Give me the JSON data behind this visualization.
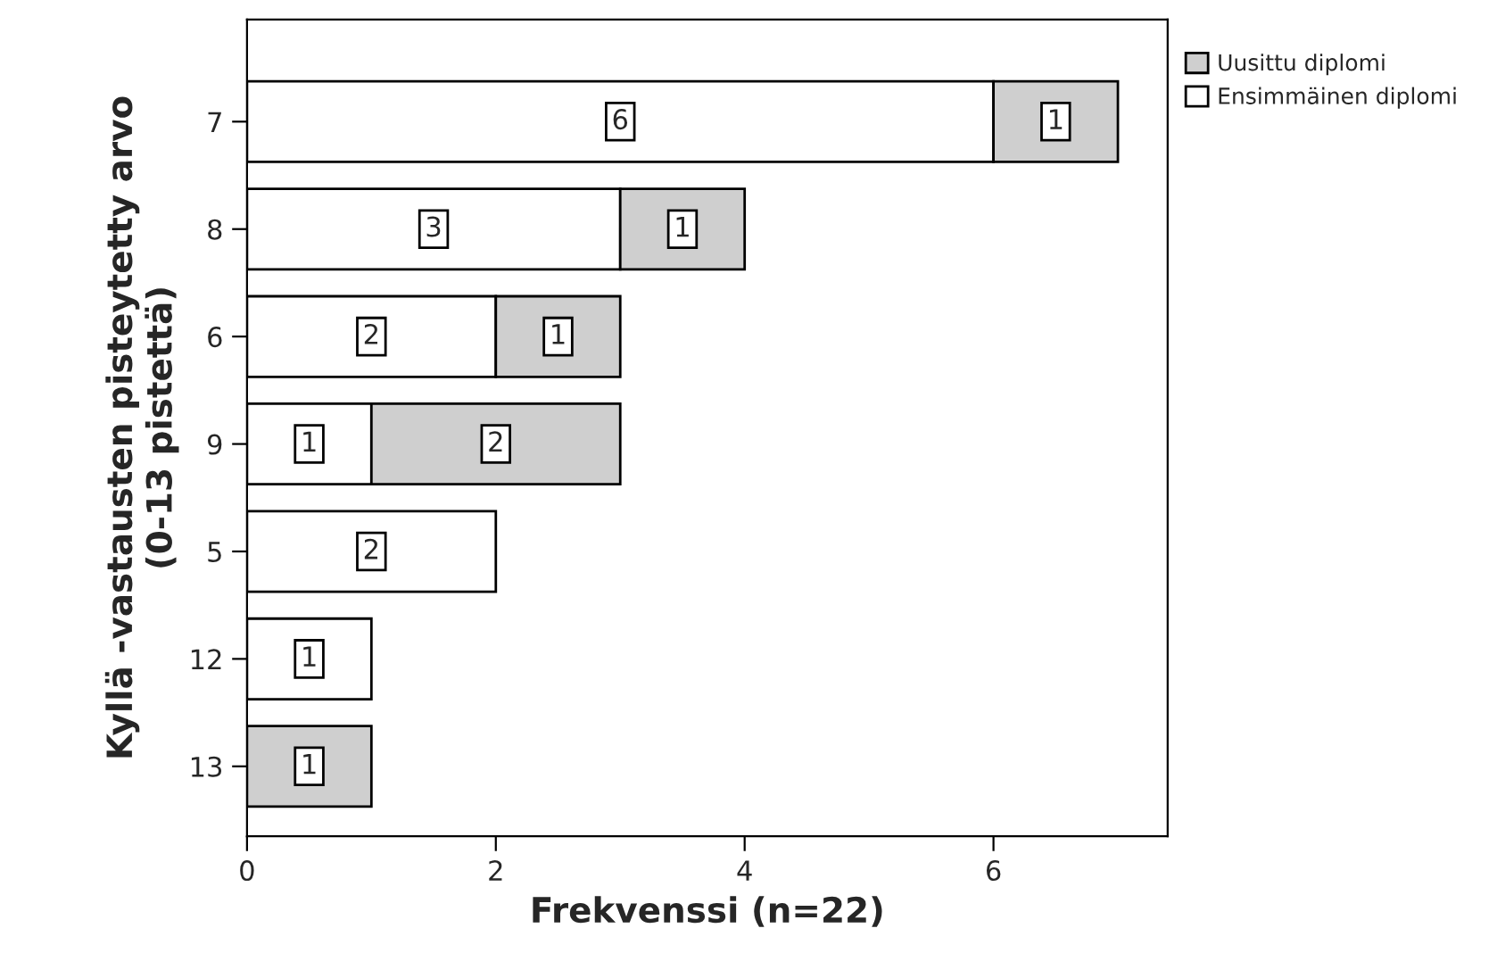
{
  "chart_data": {
    "type": "bar",
    "orientation": "horizontal",
    "stacked": true,
    "categories": [
      "7",
      "8",
      "6",
      "9",
      "5",
      "12",
      "13"
    ],
    "series": [
      {
        "name": "Ensimmäinen diplomi",
        "color": "#ffffff",
        "values": [
          6,
          3,
          2,
          1,
          2,
          1,
          null
        ]
      },
      {
        "name": "Uusittu diplomi",
        "color": "#cfcfcf",
        "values": [
          1,
          1,
          1,
          2,
          null,
          null,
          1
        ]
      }
    ],
    "xlim": [
      0,
      7.4
    ],
    "xticks": [
      0,
      2,
      4,
      6
    ],
    "xlabel": "Frekvenssi (n=22)",
    "ylabel": "Kyllä -vastausten pisteytetty arvo\n(0-13 pistettä)",
    "data_labels": true,
    "legend": "top right",
    "grid": false
  }
}
